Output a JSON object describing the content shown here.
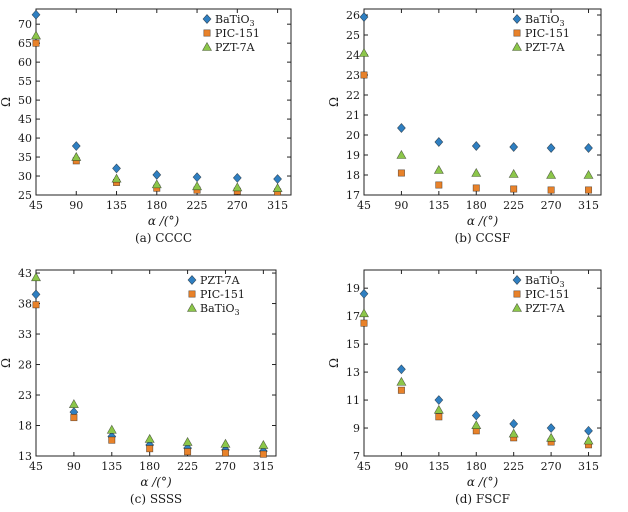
{
  "chart_data": [
    {
      "type": "scatter",
      "caption": "(a) CCCC",
      "xlabel": "α /(°)",
      "ylabel": "Ω",
      "x": [
        45,
        90,
        135,
        180,
        225,
        270,
        315
      ],
      "xticks": [
        "45",
        "90",
        "135",
        "180",
        "225",
        "270",
        "315"
      ],
      "ylim": [
        25,
        74
      ],
      "yticks": [
        "25",
        "30",
        "35",
        "40",
        "45",
        "50",
        "55",
        "60",
        "65",
        "70"
      ],
      "ytick_values": [
        25,
        30,
        35,
        40,
        45,
        50,
        55,
        60,
        65,
        70
      ],
      "legend_position": "top-right",
      "series": [
        {
          "name": "BaTiO",
          "sub": "3",
          "marker": "diamond",
          "color": "#2f7fc1",
          "values": [
            72.5,
            37.9,
            32.0,
            30.3,
            29.7,
            29.5,
            29.2
          ]
        },
        {
          "name": "PIC-151",
          "marker": "square",
          "color": "#e8822a",
          "values": [
            65.0,
            34.0,
            28.3,
            26.8,
            26.3,
            26.0,
            25.8
          ]
        },
        {
          "name": "PZT-7A",
          "marker": "triangle",
          "color": "#8cc64a",
          "values": [
            67.0,
            35.0,
            29.3,
            27.8,
            27.3,
            27.0,
            26.8
          ]
        }
      ]
    },
    {
      "type": "scatter",
      "caption": "(b) CCSF",
      "xlabel": "α /(°)",
      "ylabel": "Ω",
      "x": [
        45,
        90,
        135,
        180,
        225,
        270,
        315
      ],
      "xticks": [
        "45",
        "90",
        "135",
        "180",
        "225",
        "270",
        "315"
      ],
      "ylim": [
        17,
        26.3
      ],
      "yticks": [
        "17",
        "18",
        "19",
        "20",
        "21",
        "22",
        "23",
        "24",
        "25",
        "26"
      ],
      "ytick_values": [
        17,
        18,
        19,
        20,
        21,
        22,
        23,
        24,
        25,
        26
      ],
      "legend_position": "top-right",
      "series": [
        {
          "name": "BaTiO",
          "sub": "3",
          "marker": "diamond",
          "color": "#2f7fc1",
          "values": [
            25.9,
            20.35,
            19.65,
            19.45,
            19.4,
            19.35,
            19.35
          ]
        },
        {
          "name": "PIC-151",
          "marker": "square",
          "color": "#e8822a",
          "values": [
            23.0,
            18.1,
            17.5,
            17.35,
            17.3,
            17.25,
            17.25
          ]
        },
        {
          "name": "PZT-7A",
          "marker": "triangle",
          "color": "#8cc64a",
          "values": [
            24.1,
            19.0,
            18.25,
            18.1,
            18.05,
            18.0,
            18.0
          ]
        }
      ]
    },
    {
      "type": "scatter",
      "caption": "(c) SSSS",
      "xlabel": "α /(°)",
      "ylabel": "Ω",
      "x": [
        45,
        90,
        135,
        180,
        225,
        270,
        315
      ],
      "xticks": [
        "45",
        "90",
        "135",
        "180",
        "225",
        "270",
        "315"
      ],
      "ylim": [
        13,
        43.5
      ],
      "yticks": [
        "13",
        "18",
        "23",
        "28",
        "33",
        "38",
        "43"
      ],
      "ytick_values": [
        13,
        18,
        23,
        28,
        33,
        38,
        43
      ],
      "legend_position": "top-right",
      "series": [
        {
          "name": "PZT-7A",
          "marker": "diamond",
          "color": "#2f7fc1",
          "values": [
            39.5,
            20.2,
            16.2,
            14.8,
            14.3,
            14.0,
            13.8
          ]
        },
        {
          "name": "PIC-151",
          "marker": "square",
          "color": "#e8822a",
          "values": [
            37.8,
            19.3,
            15.6,
            14.2,
            13.7,
            13.5,
            13.3
          ]
        },
        {
          "name": "BaTiO",
          "sub": "3",
          "marker": "triangle",
          "color": "#8cc64a",
          "values": [
            42.3,
            21.5,
            17.3,
            15.8,
            15.3,
            15.0,
            14.8
          ]
        }
      ]
    },
    {
      "type": "scatter",
      "caption": "(d) FSCF",
      "xlabel": "α /(°)",
      "ylabel": "Ω",
      "x": [
        45,
        90,
        135,
        180,
        225,
        270,
        315
      ],
      "xticks": [
        "45",
        "90",
        "135",
        "180",
        "225",
        "270",
        "315"
      ],
      "ylim": [
        7,
        20.3
      ],
      "yticks": [
        "7",
        "9",
        "11",
        "13",
        "15",
        "17",
        "19"
      ],
      "ytick_values": [
        7,
        9,
        11,
        13,
        15,
        17,
        19
      ],
      "legend_position": "top-right",
      "series": [
        {
          "name": "BaTiO",
          "sub": "3",
          "marker": "diamond",
          "color": "#2f7fc1",
          "values": [
            18.6,
            13.2,
            11.0,
            9.9,
            9.3,
            9.0,
            8.8
          ]
        },
        {
          "name": "PIC-151",
          "marker": "square",
          "color": "#e8822a",
          "values": [
            16.5,
            11.7,
            9.8,
            8.8,
            8.3,
            8.0,
            7.8
          ]
        },
        {
          "name": "PZT-7A",
          "marker": "triangle",
          "color": "#8cc64a",
          "values": [
            17.2,
            12.3,
            10.3,
            9.2,
            8.6,
            8.3,
            8.1
          ]
        }
      ]
    }
  ]
}
